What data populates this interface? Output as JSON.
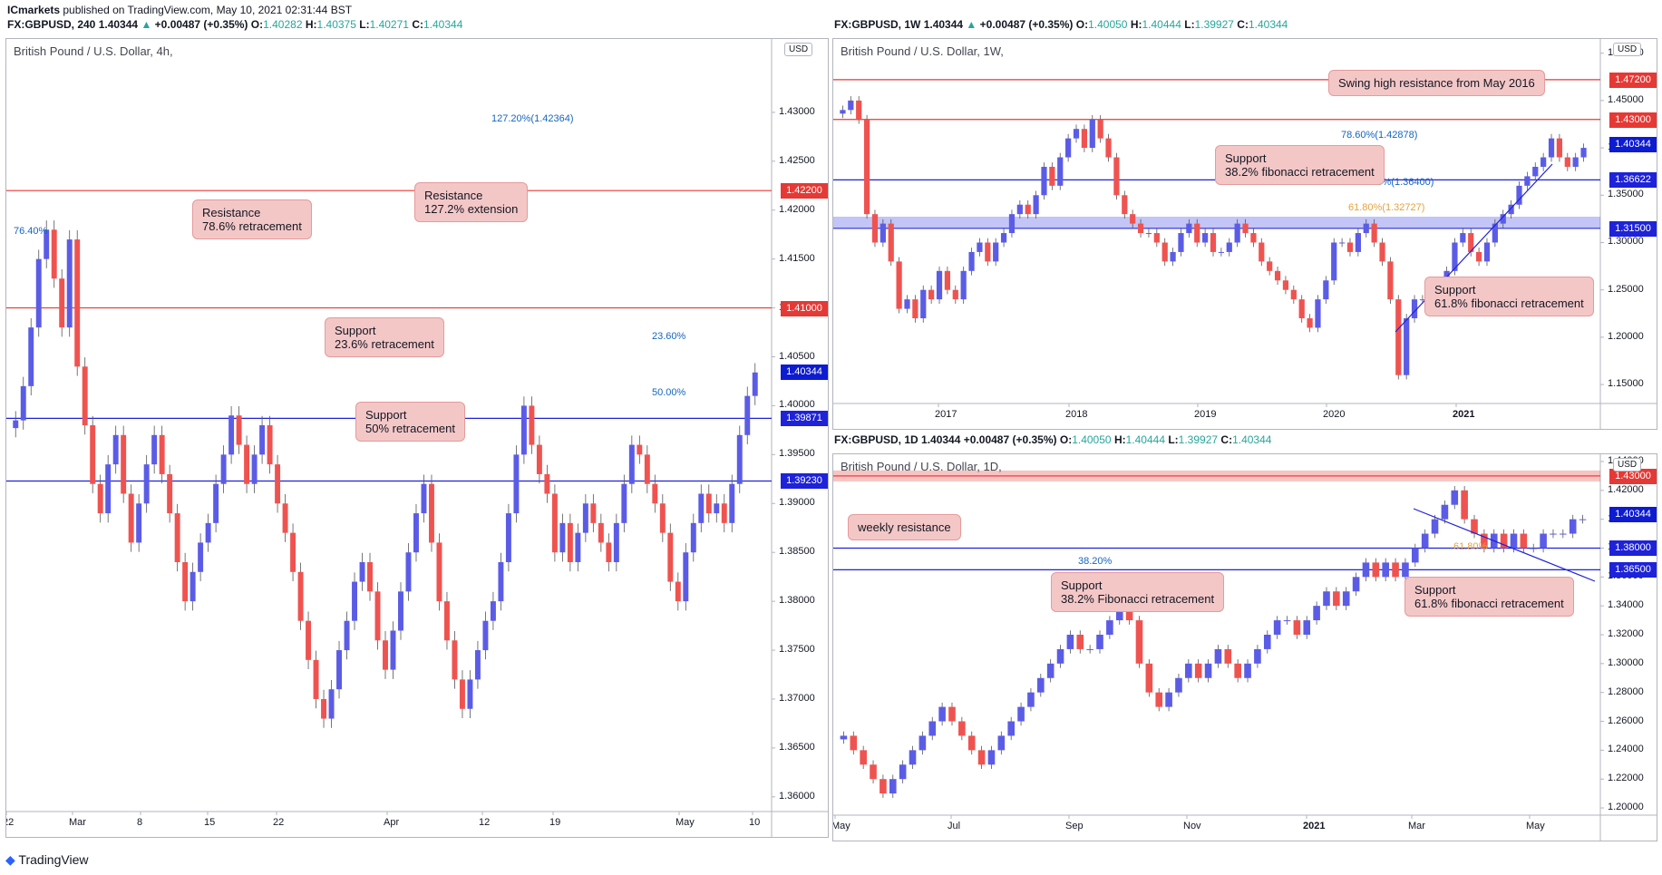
{
  "header_left": {
    "publisher": "ICmarkets",
    "published": "published on TradingView.com, May 10, 2021 02:31:44 BST",
    "symbol": "FX:GBPUSD, 240",
    "last": "1.40344",
    "change": "+0.00487 (+0.35%)",
    "ohlc": {
      "o": "1.40282",
      "h": "1.40375",
      "l": "1.40271",
      "c": "1.40344"
    }
  },
  "header_weekly": {
    "symbol": "FX:GBPUSD, 1W",
    "last": "1.40344",
    "change": "+0.00487 (+0.35%)",
    "ohlc": {
      "o": "1.40050",
      "h": "1.40444",
      "l": "1.39927",
      "c": "1.40344"
    }
  },
  "header_daily": {
    "symbol": "FX:GBPUSD, 1D",
    "last": "1.40344",
    "change": "+0.00487 (+0.35%)",
    "ohlc": {
      "o": "1.40050",
      "h": "1.40444",
      "l": "1.39927",
      "c": "1.40344"
    }
  },
  "footer": {
    "brand": "TradingView"
  },
  "colors": {
    "up": "#5b5ce6",
    "down": "#ef5350",
    "res": "#e53935",
    "sup": "#1e22d8",
    "label_bg": "#f4c7c7",
    "fib": "#1565c0"
  },
  "chart_data": [
    {
      "id": "h4",
      "type": "candlestick",
      "title": "British Pound / U.S. Dollar, 4h,",
      "currency": "USD",
      "ylim": [
        1.3585,
        1.4375
      ],
      "yticks": [
        "1.43000",
        "1.42500",
        "1.42000",
        "1.41500",
        "1.41000",
        "1.40500",
        "1.40000",
        "1.39500",
        "1.39000",
        "1.38500",
        "1.38000",
        "1.37500",
        "1.37000",
        "1.36500",
        "1.36000"
      ],
      "xticks": [
        "22",
        "Mar",
        "8",
        "15",
        "22",
        "Apr",
        "12",
        "19",
        "May",
        "10"
      ],
      "price_lines": [
        {
          "value": 1.422,
          "label": "1.42200",
          "kind": "resistance"
        },
        {
          "value": 1.41,
          "label": "1.41000",
          "kind": "resistance"
        },
        {
          "value": 1.40344,
          "label": "1.40344",
          "kind": "current"
        },
        {
          "value": 1.39871,
          "label": "1.39871",
          "kind": "support"
        },
        {
          "value": 1.3923,
          "label": "1.39230",
          "kind": "support"
        }
      ],
      "fib_labels": [
        "127.20%(1.42364)",
        "76.40%",
        "23.60%",
        "50.00%"
      ],
      "callouts": [
        {
          "text": "Resistance\n78.6% retracement"
        },
        {
          "text": "Resistance\n127.2% extension"
        },
        {
          "text": "Support\n23.6% retracement"
        },
        {
          "text": "Support\n50% retracement"
        }
      ],
      "close_series": [
        1.3985,
        1.402,
        1.408,
        1.415,
        1.418,
        1.413,
        1.408,
        1.417,
        1.404,
        1.398,
        1.392,
        1.389,
        1.394,
        1.397,
        1.391,
        1.386,
        1.39,
        1.394,
        1.397,
        1.393,
        1.389,
        1.384,
        1.38,
        1.383,
        1.386,
        1.388,
        1.392,
        1.395,
        1.399,
        1.396,
        1.392,
        1.395,
        1.398,
        1.394,
        1.39,
        1.387,
        1.383,
        1.378,
        1.374,
        1.37,
        1.368,
        1.371,
        1.375,
        1.378,
        1.382,
        1.384,
        1.381,
        1.376,
        1.373,
        1.377,
        1.381,
        1.385,
        1.389,
        1.392,
        1.386,
        1.38,
        1.376,
        1.372,
        1.369,
        1.372,
        1.375,
        1.378,
        1.38,
        1.384,
        1.389,
        1.395,
        1.4,
        1.396,
        1.393,
        1.391,
        1.385,
        1.388,
        1.384,
        1.387,
        1.39,
        1.388,
        1.386,
        1.384,
        1.388,
        1.392,
        1.396,
        1.395,
        1.392,
        1.39,
        1.387,
        1.382,
        1.38,
        1.385,
        1.388,
        1.391,
        1.389,
        1.39,
        1.388,
        1.392,
        1.397,
        1.401,
        1.4034
      ]
    },
    {
      "id": "w1",
      "type": "candlestick",
      "title": "British Pound / U.S. Dollar, 1W,",
      "currency": "USD",
      "ylim": [
        1.13,
        1.515
      ],
      "yticks": [
        "1.50000",
        "1.45000",
        "1.40000",
        "1.35000",
        "1.30000",
        "1.25000",
        "1.20000",
        "1.15000"
      ],
      "xticks": [
        "2017",
        "2018",
        "2019",
        "2020",
        "2021"
      ],
      "price_lines": [
        {
          "value": 1.472,
          "label": "1.47200",
          "kind": "resistance"
        },
        {
          "value": 1.43,
          "label": "1.43000",
          "kind": "resistance"
        },
        {
          "value": 1.40344,
          "label": "1.40344",
          "kind": "current"
        },
        {
          "value": 1.36622,
          "label": "1.36622",
          "kind": "support"
        },
        {
          "value": 1.315,
          "label": "1.31500",
          "kind": "support"
        }
      ],
      "fib_labels": [
        "78.60%(1.42878)",
        "38.20%(1.36400)",
        "61.80%(1.32727)"
      ],
      "callouts": [
        {
          "text": "Swing high resistance from May 2016"
        },
        {
          "text": "Support\n38.2% fibonacci retracement"
        },
        {
          "text": "Support\n61.8% fibonacci retracement"
        }
      ],
      "close_series": [
        1.44,
        1.45,
        1.43,
        1.33,
        1.3,
        1.32,
        1.28,
        1.23,
        1.24,
        1.22,
        1.25,
        1.24,
        1.27,
        1.25,
        1.24,
        1.27,
        1.29,
        1.3,
        1.28,
        1.3,
        1.31,
        1.33,
        1.34,
        1.33,
        1.35,
        1.38,
        1.36,
        1.39,
        1.41,
        1.42,
        1.4,
        1.43,
        1.41,
        1.39,
        1.35,
        1.33,
        1.32,
        1.31,
        1.31,
        1.3,
        1.28,
        1.29,
        1.31,
        1.32,
        1.3,
        1.31,
        1.29,
        1.29,
        1.3,
        1.32,
        1.31,
        1.3,
        1.28,
        1.27,
        1.26,
        1.25,
        1.24,
        1.22,
        1.21,
        1.24,
        1.26,
        1.3,
        1.3,
        1.29,
        1.31,
        1.32,
        1.3,
        1.28,
        1.24,
        1.16,
        1.22,
        1.24,
        1.24,
        1.25,
        1.23,
        1.27,
        1.3,
        1.31,
        1.29,
        1.28,
        1.3,
        1.32,
        1.33,
        1.34,
        1.36,
        1.37,
        1.38,
        1.39,
        1.41,
        1.39,
        1.38,
        1.39,
        1.4
      ]
    },
    {
      "id": "d1",
      "type": "candlestick",
      "title": "British Pound / U.S. Dollar, 1D,",
      "currency": "USD",
      "ylim": [
        1.195,
        1.445
      ],
      "yticks": [
        "1.44000",
        "1.42000",
        "1.40000",
        "1.38000",
        "1.36000",
        "1.34000",
        "1.32000",
        "1.30000",
        "1.28000",
        "1.26000",
        "1.24000",
        "1.22000",
        "1.20000"
      ],
      "xticks": [
        "May",
        "Jul",
        "Sep",
        "Nov",
        "2021",
        "Mar",
        "May"
      ],
      "price_lines": [
        {
          "value": 1.43,
          "label": "1.43000",
          "kind": "resistance"
        },
        {
          "value": 1.40344,
          "label": "1.40344",
          "kind": "current"
        },
        {
          "value": 1.38,
          "label": "1.38000",
          "kind": "support"
        },
        {
          "value": 1.365,
          "label": "1.36500",
          "kind": "support"
        }
      ],
      "fib_labels": [
        "38.20%",
        "61.80%"
      ],
      "callouts": [
        {
          "text": "weekly resistance"
        },
        {
          "text": "Support\n38.2% Fibonacci retracement"
        },
        {
          "text": "Support\n61.8% fibonacci retracement"
        }
      ],
      "close_series": [
        1.25,
        1.24,
        1.23,
        1.22,
        1.21,
        1.22,
        1.23,
        1.24,
        1.25,
        1.26,
        1.27,
        1.26,
        1.25,
        1.24,
        1.23,
        1.24,
        1.25,
        1.26,
        1.27,
        1.28,
        1.29,
        1.3,
        1.31,
        1.32,
        1.31,
        1.31,
        1.32,
        1.33,
        1.34,
        1.33,
        1.3,
        1.28,
        1.27,
        1.28,
        1.29,
        1.3,
        1.29,
        1.3,
        1.31,
        1.3,
        1.29,
        1.3,
        1.31,
        1.32,
        1.33,
        1.33,
        1.32,
        1.33,
        1.34,
        1.35,
        1.34,
        1.35,
        1.36,
        1.37,
        1.36,
        1.37,
        1.36,
        1.37,
        1.38,
        1.39,
        1.4,
        1.41,
        1.42,
        1.4,
        1.39,
        1.38,
        1.39,
        1.38,
        1.39,
        1.38,
        1.38,
        1.39,
        1.39,
        1.39,
        1.4,
        1.4
      ]
    }
  ]
}
